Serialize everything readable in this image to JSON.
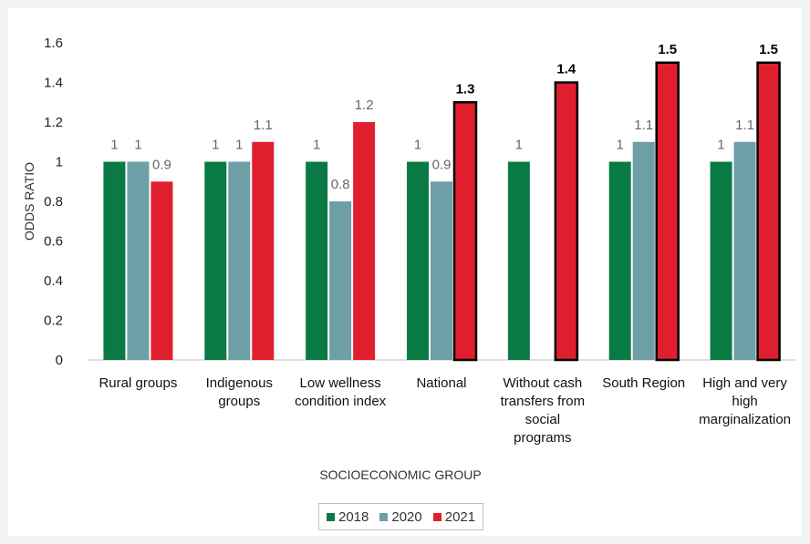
{
  "chart_data": {
    "type": "bar",
    "title": "",
    "xlabel": "SOCIOECONOMIC GROUP",
    "ylabel": "ODDS RATIO",
    "ylim": [
      0,
      1.6
    ],
    "yticks": [
      "0",
      "0.2",
      "0.4",
      "0.6",
      "0.8",
      "1",
      "1.2",
      "1.4",
      "1.6"
    ],
    "grid": false,
    "legend_position": "bottom",
    "categories": [
      [
        "Rural groups"
      ],
      [
        "Indigenous",
        "groups"
      ],
      [
        "Low wellness",
        "condition index"
      ],
      [
        "National"
      ],
      [
        "Without cash",
        "transfers from",
        "social",
        "programs"
      ],
      [
        "South Region"
      ],
      [
        "High and very",
        "high",
        "marginalization"
      ]
    ],
    "series": [
      {
        "name": "2018",
        "color": "#0a7a44",
        "values": [
          1,
          1,
          1,
          1,
          1,
          1,
          1
        ],
        "labels": [
          "1",
          "1",
          "1",
          "1",
          "1",
          "1",
          "1"
        ],
        "highlight": [
          false,
          false,
          false,
          false,
          false,
          false,
          false
        ]
      },
      {
        "name": "2020",
        "color": "#6e9ea6",
        "values": [
          1,
          1,
          0.8,
          0.9,
          null,
          1.1,
          1.1
        ],
        "labels": [
          "1",
          "1",
          "0.8",
          "0.9",
          "",
          "1.1",
          "1.1"
        ],
        "highlight": [
          false,
          false,
          false,
          false,
          false,
          false,
          false
        ]
      },
      {
        "name": "2021",
        "color": "#e01f2e",
        "values": [
          0.9,
          1.1,
          1.2,
          1.3,
          1.4,
          1.5,
          1.5
        ],
        "labels": [
          "0.9",
          "1.1",
          "1.2",
          "1.3",
          "1.4",
          "1.5",
          "1.5"
        ],
        "highlight": [
          false,
          false,
          false,
          true,
          true,
          true,
          true
        ]
      }
    ]
  }
}
